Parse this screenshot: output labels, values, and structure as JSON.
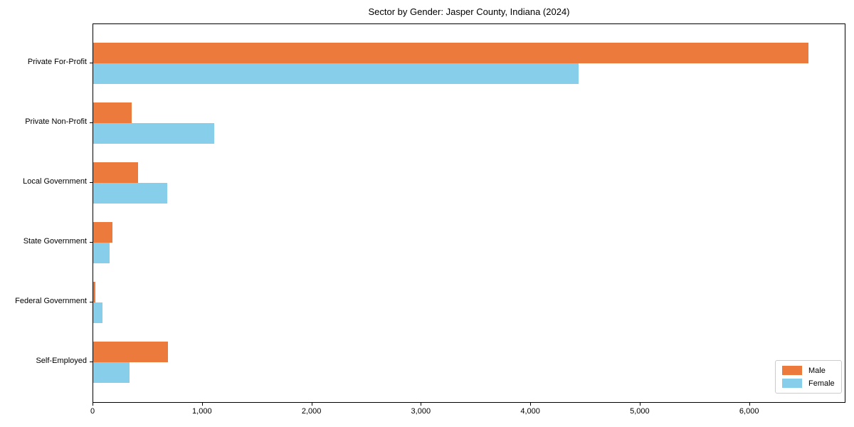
{
  "chart_data": {
    "type": "bar",
    "orientation": "horizontal",
    "title": "Sector by Gender: Jasper County, Indiana (2024)",
    "xlabel": "",
    "ylabel": "",
    "categories": [
      "Private For-Profit",
      "Private Non-Profit",
      "Local Government",
      "State Government",
      "Federal Government",
      "Self-Employed"
    ],
    "series": [
      {
        "name": "Male",
        "color": "#ec7a3c",
        "values": [
          6550,
          350,
          410,
          175,
          20,
          685
        ]
      },
      {
        "name": "Female",
        "color": "#87ceeb",
        "values": [
          4440,
          1110,
          680,
          150,
          85,
          330
        ]
      }
    ],
    "xlim": [
      0,
      6880
    ],
    "xticks": [
      0,
      1000,
      2000,
      3000,
      4000,
      5000,
      6000
    ],
    "xtick_labels": [
      "0",
      "1,000",
      "2,000",
      "3,000",
      "4,000",
      "5,000",
      "6,000"
    ],
    "grid": false,
    "legend_position": "lower right",
    "colors": {
      "male": "#ec7a3c",
      "female": "#87ceeb",
      "spine": "#000000",
      "background": "#ffffff"
    }
  }
}
